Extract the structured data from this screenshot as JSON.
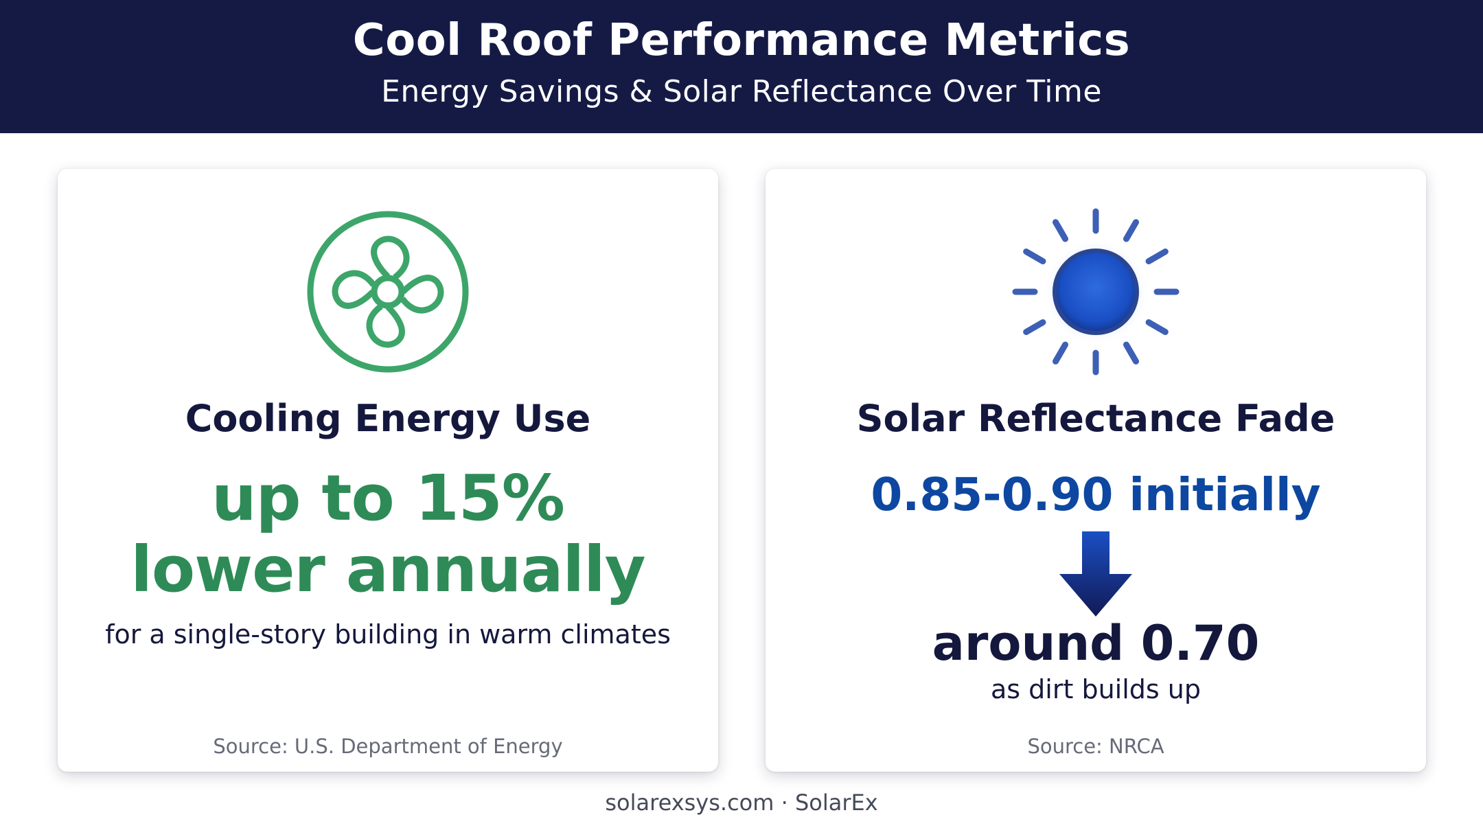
{
  "header": {
    "title": "Cool Roof Performance Metrics",
    "subtitle": "Energy Savings & Solar Reflectance Over Time"
  },
  "cards": [
    {
      "icon": "fan-icon",
      "heading": "Cooling Energy Use",
      "headline_line1": "up to 15%",
      "headline_line2": "lower annually",
      "caption": "for a single-story building in warm climates",
      "source": "Source: U.S. Department of Energy",
      "accent_color": "#2e8b57"
    },
    {
      "icon": "sun-icon",
      "heading": "Solar Reflectance Fade",
      "initial_value": "0.85-0.90 initially",
      "arrow_icon": "arrow-down-icon",
      "final_value": "around 0.70",
      "caption": "as dirt builds up",
      "source": "Source: NRCA",
      "accent_color": "#0d47a1"
    }
  ],
  "footer": {
    "text": "solarexsys.com · SolarEx"
  },
  "colors": {
    "header_bg": "#151a45",
    "green": "#2e8b57",
    "blue": "#0d47a1",
    "navy_text": "#15183d"
  }
}
